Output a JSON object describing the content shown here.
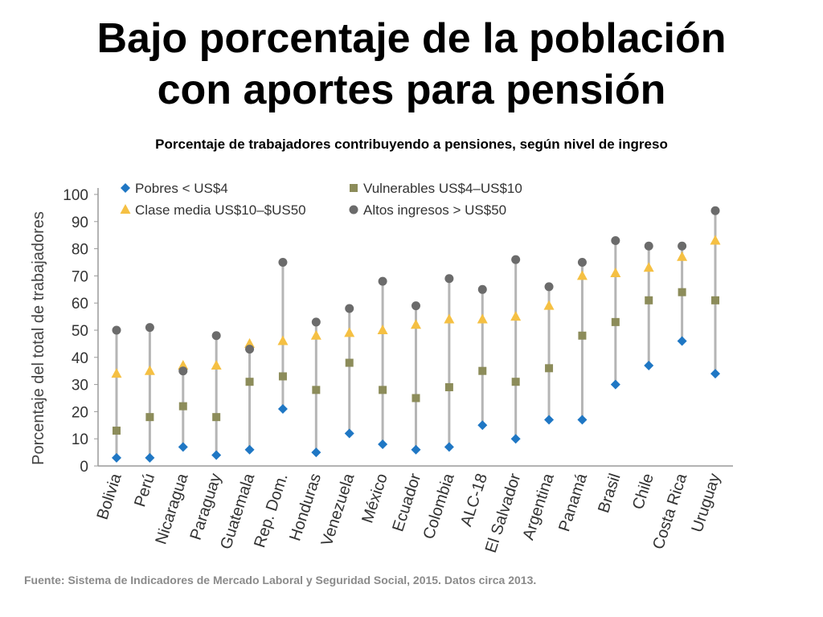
{
  "slide": {
    "title_line1": "Bajo porcentaje de la población",
    "title_line2": "con aportes para pensión",
    "subtitle": "Porcentaje de trabajadores contribuyendo a pensiones, según nivel de ingreso",
    "source": "Fuente: Sistema de Indicadores de Mercado Laboral y Seguridad Social, 2015. Datos circa 2013."
  },
  "chart_data": {
    "type": "scatter",
    "ylabel": "Porcentaje del total de trabajadores",
    "ylim": [
      0,
      100
    ],
    "yticks": [
      0,
      10,
      20,
      30,
      40,
      50,
      60,
      70,
      80,
      90,
      100
    ],
    "categories": [
      "Bolivia",
      "Perú",
      "Nicaragua",
      "Paraguay",
      "Guatemala",
      "Rep. Dom.",
      "Honduras",
      "Venezuela",
      "México",
      "Ecuador",
      "Colombia",
      "ALC-18",
      "El Salvador",
      "Argentina",
      "Panamá",
      "Brasil",
      "Chile",
      "Costa Rica",
      "Uruguay"
    ],
    "series": [
      {
        "name": "Pobres < US$4",
        "marker": "diamond",
        "color": "#1f77c4",
        "values": [
          3,
          3,
          7,
          4,
          6,
          21,
          5,
          12,
          8,
          6,
          7,
          15,
          10,
          17,
          17,
          30,
          37,
          46,
          34
        ]
      },
      {
        "name": "Vulnerables US$4–US$10",
        "marker": "square",
        "color": "#8c8c5a",
        "values": [
          13,
          18,
          22,
          18,
          31,
          33,
          28,
          38,
          28,
          25,
          29,
          35,
          31,
          36,
          48,
          53,
          61,
          64,
          61
        ]
      },
      {
        "name": "Clase media US$10–$US50",
        "marker": "triangle",
        "color": "#f5c043",
        "values": [
          34,
          35,
          37,
          37,
          45,
          46,
          48,
          49,
          50,
          52,
          54,
          54,
          55,
          59,
          70,
          71,
          73,
          77,
          83
        ]
      },
      {
        "name": "Altos ingresos > US$50",
        "marker": "circle",
        "color": "#6b6b6b",
        "values": [
          50,
          51,
          35,
          48,
          43,
          75,
          53,
          58,
          68,
          59,
          69,
          65,
          76,
          66,
          75,
          83,
          81,
          81,
          94
        ]
      }
    ],
    "legend_order": [
      0,
      1,
      2,
      3
    ],
    "range_line_color": "#b5b5b5",
    "axis_color": "#9a9a9a"
  }
}
